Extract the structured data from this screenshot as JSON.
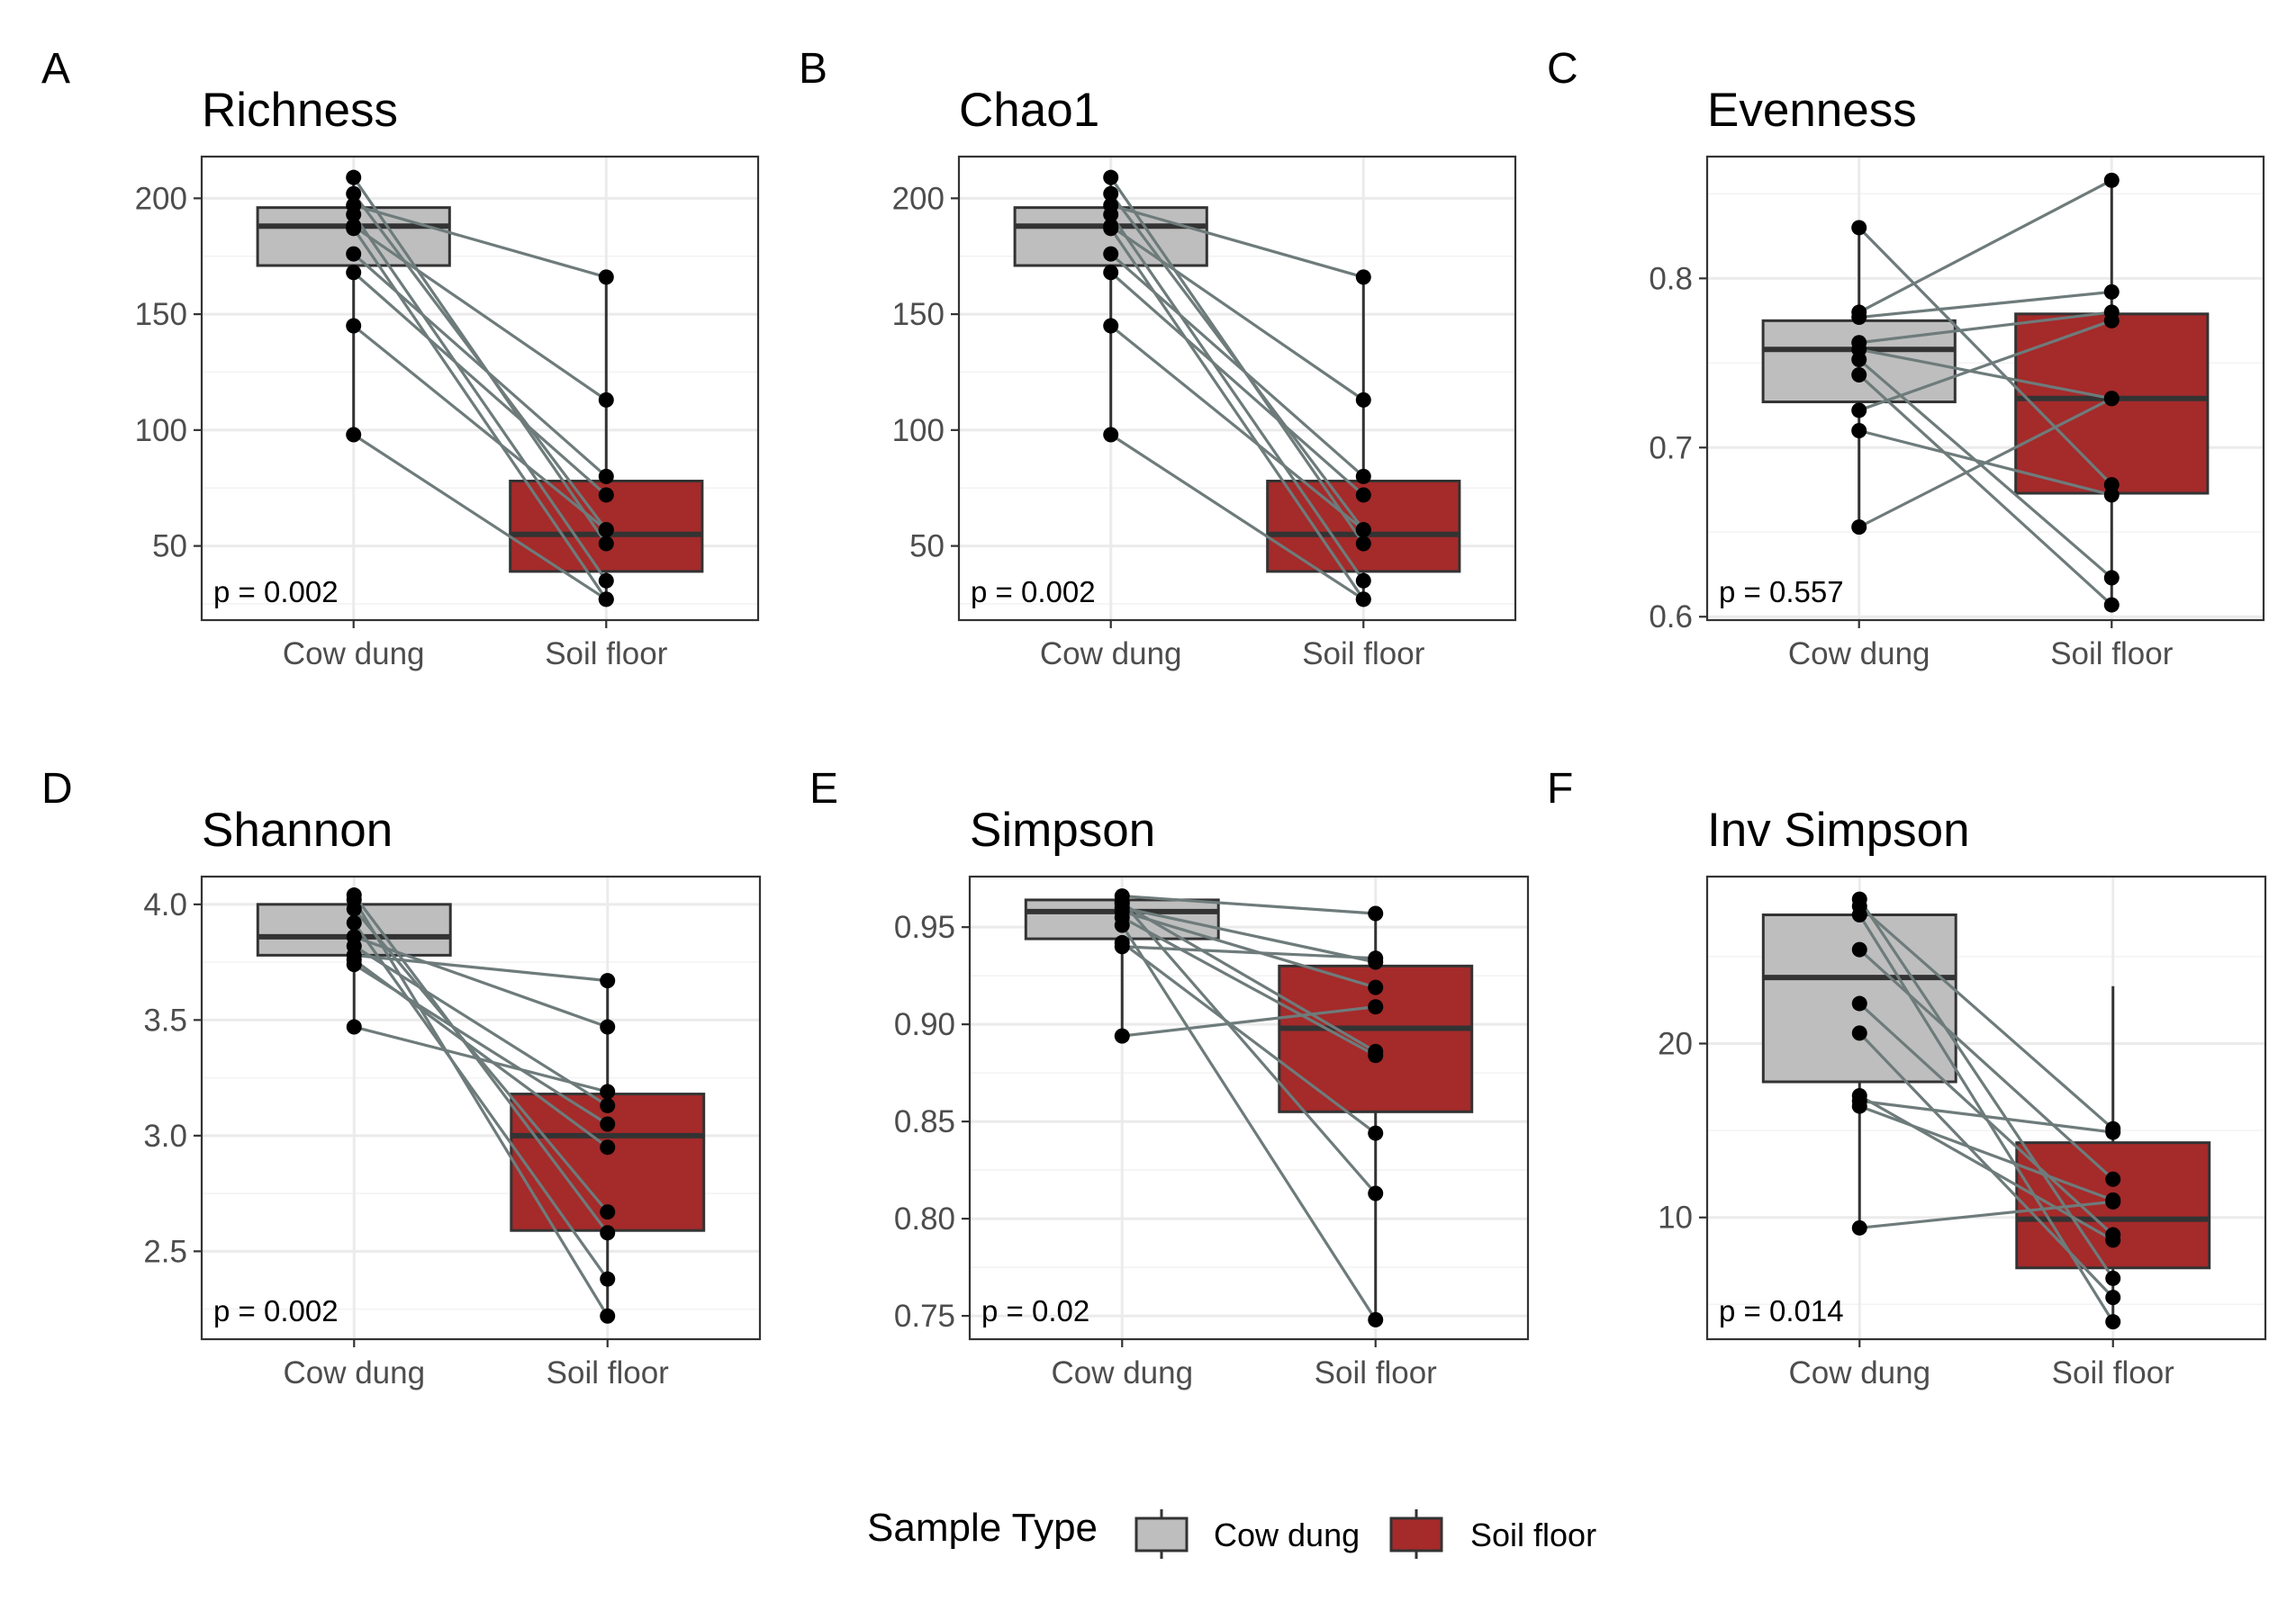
{
  "legend": {
    "title": "Sample Type",
    "items": [
      {
        "label": "Cow dung",
        "color": "#BEBEBE"
      },
      {
        "label": "Soil floor",
        "color": "#A52A2A"
      }
    ]
  },
  "style": {
    "line_color": "#6E7B7B",
    "point_color": "#000000",
    "box_border": "#333333",
    "grid_color": "#EBEBEB"
  },
  "chart_data": [
    {
      "tag": "A",
      "title": "Richness",
      "type": "box",
      "categories": [
        "Cow dung",
        "Soil floor"
      ],
      "ylim": [
        18,
        218
      ],
      "yticks": [
        50,
        100,
        150,
        200
      ],
      "yticklabels": [
        "50",
        "100",
        "150",
        "200"
      ],
      "pvalue": "p = 0.002",
      "boxes": [
        {
          "min": 98,
          "q1": 171,
          "median": 188,
          "q3": 196,
          "max": 209
        },
        {
          "min": 27,
          "q1": 39,
          "median": 55,
          "q3": 78,
          "max": 166
        }
      ],
      "pairs": [
        [
          209,
          51
        ],
        [
          202,
          57
        ],
        [
          197,
          166
        ],
        [
          193,
          35
        ],
        [
          188,
          113
        ],
        [
          187,
          27
        ],
        [
          176,
          80
        ],
        [
          168,
          72
        ],
        [
          145,
          57
        ],
        [
          98,
          27
        ]
      ]
    },
    {
      "tag": "B",
      "title": "Chao1",
      "type": "box",
      "categories": [
        "Cow dung",
        "Soil floor"
      ],
      "ylim": [
        18,
        218
      ],
      "yticks": [
        50,
        100,
        150,
        200
      ],
      "yticklabels": [
        "50",
        "100",
        "150",
        "200"
      ],
      "pvalue": "p = 0.002",
      "boxes": [
        {
          "min": 98,
          "q1": 171,
          "median": 188,
          "q3": 196,
          "max": 209
        },
        {
          "min": 27,
          "q1": 39,
          "median": 55,
          "q3": 78,
          "max": 166
        }
      ],
      "pairs": [
        [
          209,
          51
        ],
        [
          202,
          57
        ],
        [
          197,
          166
        ],
        [
          193,
          35
        ],
        [
          188,
          113
        ],
        [
          187,
          27
        ],
        [
          176,
          80
        ],
        [
          168,
          72
        ],
        [
          145,
          57
        ],
        [
          98,
          27
        ]
      ]
    },
    {
      "tag": "C",
      "title": "Evenness",
      "type": "box",
      "categories": [
        "Cow dung",
        "Soil floor"
      ],
      "ylim": [
        0.598,
        0.872
      ],
      "yticks": [
        0.6,
        0.7,
        0.8
      ],
      "yticklabels": [
        "0.6",
        "0.7",
        "0.8"
      ],
      "pvalue": "p = 0.557",
      "boxes": [
        {
          "min": 0.653,
          "q1": 0.727,
          "median": 0.758,
          "q3": 0.775,
          "max": 0.83
        },
        {
          "min": 0.607,
          "q1": 0.673,
          "median": 0.729,
          "q3": 0.779,
          "max": 0.858
        }
      ],
      "pairs": [
        [
          0.83,
          0.678
        ],
        [
          0.78,
          0.858
        ],
        [
          0.777,
          0.792
        ],
        [
          0.762,
          0.78
        ],
        [
          0.758,
          0.729
        ],
        [
          0.752,
          0.623
        ],
        [
          0.743,
          0.607
        ],
        [
          0.722,
          0.775
        ],
        [
          0.71,
          0.672
        ],
        [
          0.653,
          0.729
        ]
      ]
    },
    {
      "tag": "D",
      "title": "Shannon",
      "type": "box",
      "categories": [
        "Cow dung",
        "Soil floor"
      ],
      "ylim": [
        2.12,
        4.12
      ],
      "yticks": [
        2.5,
        3.0,
        3.5,
        4.0
      ],
      "yticklabels": [
        "2.5",
        "3.0",
        "3.5",
        "4.0"
      ],
      "pvalue": "p = 0.002",
      "boxes": [
        {
          "min": 3.47,
          "q1": 3.78,
          "median": 3.86,
          "q3": 4.0,
          "max": 4.04
        },
        {
          "min": 2.22,
          "q1": 2.59,
          "median": 3.0,
          "q3": 3.18,
          "max": 3.67
        }
      ],
      "pairs": [
        [
          4.04,
          2.58
        ],
        [
          4.02,
          2.22
        ],
        [
          3.98,
          2.67
        ],
        [
          3.92,
          2.38
        ],
        [
          3.86,
          3.47
        ],
        [
          3.82,
          3.13
        ],
        [
          3.78,
          3.67
        ],
        [
          3.76,
          2.95
        ],
        [
          3.74,
          3.05
        ],
        [
          3.47,
          3.19
        ]
      ]
    },
    {
      "tag": "E",
      "title": "Simpson",
      "type": "box",
      "categories": [
        "Cow dung",
        "Soil floor"
      ],
      "ylim": [
        0.738,
        0.976
      ],
      "yticks": [
        0.75,
        0.8,
        0.85,
        0.9,
        0.95
      ],
      "yticklabels": [
        "0.75",
        "0.80",
        "0.85",
        "0.90",
        "0.95"
      ],
      "pvalue": "p = 0.02",
      "boxes": [
        {
          "min": 0.894,
          "q1": 0.944,
          "median": 0.958,
          "q3": 0.964,
          "max": 0.966
        },
        {
          "min": 0.748,
          "q1": 0.855,
          "median": 0.898,
          "q3": 0.93,
          "max": 0.957
        }
      ],
      "pairs": [
        [
          0.966,
          0.957
        ],
        [
          0.963,
          0.813
        ],
        [
          0.962,
          0.886
        ],
        [
          0.96,
          0.932
        ],
        [
          0.958,
          0.919
        ],
        [
          0.955,
          0.884
        ],
        [
          0.951,
          0.748
        ],
        [
          0.942,
          0.844
        ],
        [
          0.94,
          0.934
        ],
        [
          0.894,
          0.909
        ]
      ]
    },
    {
      "tag": "F",
      "title": "Inv Simpson",
      "type": "box",
      "categories": [
        "Cow dung",
        "Soil floor"
      ],
      "ylim": [
        3.0,
        29.6
      ],
      "yticks": [
        10,
        20
      ],
      "yticklabels": [
        "10",
        "20"
      ],
      "pvalue": "p = 0.014",
      "boxes": [
        {
          "min": 9.4,
          "q1": 17.8,
          "median": 23.8,
          "q3": 27.4,
          "max": 28.3
        },
        {
          "min": 4.0,
          "q1": 7.1,
          "median": 9.9,
          "q3": 14.3,
          "max": 23.3
        }
      ],
      "pairs": [
        [
          28.3,
          6.5
        ],
        [
          27.9,
          15.1
        ],
        [
          27.4,
          4.0
        ],
        [
          25.4,
          12.2
        ],
        [
          22.3,
          9.0
        ],
        [
          20.6,
          5.4
        ],
        [
          17.0,
          8.7
        ],
        [
          16.7,
          14.9
        ],
        [
          16.4,
          11.0
        ],
        [
          9.4,
          10.9
        ]
      ]
    }
  ]
}
